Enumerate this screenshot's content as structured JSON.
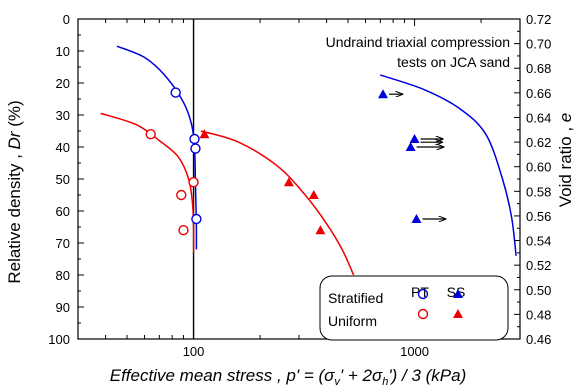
{
  "chart_data": {
    "type": "scatter",
    "xlabel": "Effective mean stress , p' = (σv' + 2σh') / 3 (kPa)",
    "ylabel_left": "Relative density , Dr (%)",
    "ylabel_right": "Void ratio , e",
    "x_scale": "log",
    "xlim": [
      30,
      3000
    ],
    "ylim_left": [
      100,
      0
    ],
    "ylim_right": [
      0.46,
      0.72
    ],
    "x_ticks": [
      {
        "value": 100,
        "label": "100"
      },
      {
        "value": 1000,
        "label": "1000"
      }
    ],
    "y_ticks_left": [
      "0",
      "10",
      "20",
      "30",
      "40",
      "50",
      "60",
      "70",
      "80",
      "90",
      "100"
    ],
    "y_ticks_right": [
      "0.72",
      "0.70",
      "0.68",
      "0.66",
      "0.64",
      "0.62",
      "0.60",
      "0.58",
      "0.56",
      "0.54",
      "0.52",
      "0.50",
      "0.48",
      "0.46"
    ],
    "annotation_lines": [
      "Undraind triaxial compression",
      "tests on JCA sand"
    ],
    "legend": {
      "columns": [
        "PT",
        "SS"
      ],
      "rows": [
        "Stratified",
        "Uniform"
      ]
    },
    "colors": {
      "stratified": "#0000dd",
      "uniform": "#ee0000",
      "vertical_line": "#000000"
    },
    "vertical_line_x": 100,
    "series": [
      {
        "group": "Stratified",
        "test": "PT",
        "marker": "open-circle",
        "points": [
          [
            83,
            23
          ],
          [
            101,
            37.5
          ],
          [
            102,
            40.5
          ],
          [
            103,
            62.5
          ]
        ]
      },
      {
        "group": "Uniform",
        "test": "PT",
        "marker": "open-circle",
        "points": [
          [
            64,
            36
          ],
          [
            88,
            55
          ],
          [
            90,
            66
          ],
          [
            100,
            51
          ]
        ]
      },
      {
        "group": "Stratified",
        "test": "SS",
        "marker": "filled-triangle",
        "points": [
          [
            720,
            23.5
          ],
          [
            1000,
            37.5
          ],
          [
            960,
            40
          ],
          [
            1020,
            62.5
          ]
        ],
        "arrow_ends": [
          [
            880,
            23.5
          ],
          [
            1340,
            37.5
          ],
          [
            1330,
            38.5
          ],
          [
            1350,
            40
          ],
          [
            1380,
            62.5
          ]
        ]
      },
      {
        "group": "Uniform",
        "test": "SS",
        "marker": "filled-triangle",
        "points": [
          [
            112,
            36
          ],
          [
            270,
            51
          ],
          [
            350,
            55
          ],
          [
            375,
            66
          ]
        ]
      }
    ],
    "curves": [
      {
        "group": "Stratified-PT",
        "points": [
          [
            45,
            8.5
          ],
          [
            60,
            12
          ],
          [
            75,
            18
          ],
          [
            90,
            26
          ],
          [
            98,
            33
          ],
          [
            101,
            40
          ],
          [
            102,
            52
          ],
          [
            103,
            65
          ],
          [
            103,
            72
          ]
        ]
      },
      {
        "group": "Uniform-PT",
        "points": [
          [
            38,
            29.5
          ],
          [
            55,
            33
          ],
          [
            70,
            38
          ],
          [
            85,
            43
          ],
          [
            95,
            50
          ],
          [
            99,
            58
          ],
          [
            100,
            66
          ],
          [
            100,
            73
          ]
        ]
      },
      {
        "group": "Stratified-SS",
        "points": [
          [
            700,
            17.5
          ],
          [
            1100,
            22
          ],
          [
            1600,
            28
          ],
          [
            2100,
            36
          ],
          [
            2500,
            50
          ],
          [
            2750,
            62
          ],
          [
            2880,
            74
          ]
        ]
      },
      {
        "group": "Uniform-SS",
        "points": [
          [
            108,
            35
          ],
          [
            160,
            38.5
          ],
          [
            240,
            46
          ],
          [
            320,
            55
          ],
          [
            400,
            64
          ],
          [
            470,
            72
          ],
          [
            530,
            80
          ]
        ]
      }
    ]
  }
}
